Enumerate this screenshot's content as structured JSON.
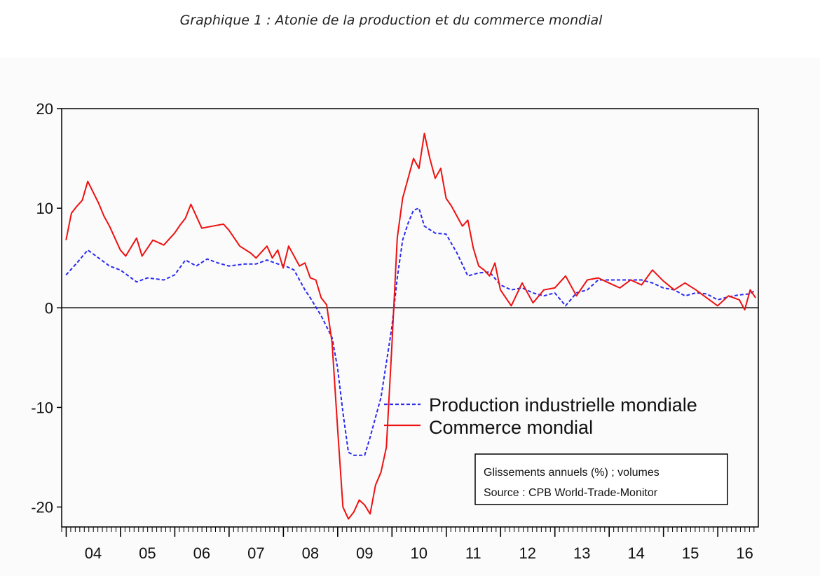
{
  "figure": {
    "caption": "Graphique 1 : Atonie de la production et du commerce mondial",
    "note_lines": [
      "Glissements annuels (%) ; volumes",
      "Source : CPB World-Trade-Monitor"
    ]
  },
  "colors": {
    "production": "#2a2af0",
    "commerce": "#ee1111",
    "axis": "#000000",
    "background": "#fbfbfb"
  },
  "chart_data": {
    "type": "line",
    "title": "",
    "xlabel": "",
    "ylabel": "",
    "ylim": [
      -22,
      20
    ],
    "xlim": [
      2003.92,
      2016.75
    ],
    "yticks": [
      20,
      10,
      0,
      -10,
      -20
    ],
    "xtick_labels": [
      "04",
      "05",
      "06",
      "07",
      "08",
      "09",
      "10",
      "11",
      "12",
      "13",
      "14",
      "15",
      "16"
    ],
    "xtick_positions": [
      2004.5,
      2005.5,
      2006.5,
      2007.5,
      2008.5,
      2009.5,
      2010.5,
      2011.5,
      2012.5,
      2013.5,
      2014.5,
      2015.5,
      2016.5
    ],
    "zero_line": true,
    "legend_position": "center-right",
    "series": [
      {
        "name": "Production industrielle mondiale",
        "style": "dashed",
        "x": [
          2004.0,
          2004.2,
          2004.4,
          2004.6,
          2004.8,
          2005.0,
          2005.3,
          2005.5,
          2005.8,
          2006.0,
          2006.2,
          2006.4,
          2006.6,
          2006.8,
          2007.0,
          2007.3,
          2007.5,
          2007.7,
          2007.9,
          2008.0,
          2008.2,
          2008.4,
          2008.5,
          2008.7,
          2008.9,
          2009.0,
          2009.1,
          2009.2,
          2009.3,
          2009.5,
          2009.6,
          2009.7,
          2009.8,
          2009.9,
          2010.0,
          2010.1,
          2010.2,
          2010.3,
          2010.4,
          2010.5,
          2010.6,
          2010.8,
          2011.0,
          2011.2,
          2011.4,
          2011.6,
          2011.8,
          2012.0,
          2012.2,
          2012.4,
          2012.6,
          2012.8,
          2013.0,
          2013.2,
          2013.4,
          2013.6,
          2013.8,
          2014.0,
          2014.2,
          2014.4,
          2014.6,
          2014.8,
          2015.0,
          2015.2,
          2015.4,
          2015.6,
          2015.8,
          2016.0,
          2016.2,
          2016.4,
          2016.6,
          2016.7
        ],
        "values": [
          3.3,
          4.5,
          5.8,
          5.0,
          4.2,
          3.8,
          2.6,
          3.0,
          2.8,
          3.3,
          4.8,
          4.2,
          4.9,
          4.5,
          4.2,
          4.4,
          4.4,
          4.8,
          4.4,
          4.3,
          3.8,
          1.8,
          1.0,
          -0.8,
          -3.0,
          -6.0,
          -10.5,
          -14.5,
          -14.8,
          -14.8,
          -13.0,
          -11.0,
          -9.0,
          -5.5,
          -2.0,
          3.0,
          6.8,
          8.5,
          9.8,
          10.0,
          8.2,
          7.5,
          7.4,
          5.5,
          3.2,
          3.5,
          3.6,
          2.3,
          1.8,
          2.0,
          1.5,
          1.2,
          1.5,
          0.2,
          1.5,
          1.8,
          2.8,
          2.8,
          2.8,
          2.8,
          2.8,
          2.5,
          2.0,
          1.8,
          1.2,
          1.5,
          1.4,
          0.8,
          1.1,
          1.3,
          1.4,
          1.8
        ]
      },
      {
        "name": "Commerce mondial",
        "style": "solid",
        "x": [
          2004.0,
          2004.1,
          2004.2,
          2004.3,
          2004.4,
          2004.6,
          2004.7,
          2004.8,
          2005.0,
          2005.1,
          2005.3,
          2005.4,
          2005.6,
          2005.8,
          2006.0,
          2006.1,
          2006.2,
          2006.3,
          2006.5,
          2006.7,
          2006.9,
          2007.0,
          2007.2,
          2007.4,
          2007.5,
          2007.7,
          2007.8,
          2007.9,
          2008.0,
          2008.1,
          2008.3,
          2008.4,
          2008.5,
          2008.6,
          2008.7,
          2008.8,
          2008.9,
          2009.0,
          2009.1,
          2009.2,
          2009.3,
          2009.4,
          2009.5,
          2009.6,
          2009.7,
          2009.8,
          2009.9,
          2010.0,
          2010.1,
          2010.2,
          2010.3,
          2010.4,
          2010.5,
          2010.6,
          2010.7,
          2010.8,
          2010.9,
          2011.0,
          2011.1,
          2011.2,
          2011.3,
          2011.4,
          2011.5,
          2011.6,
          2011.7,
          2011.8,
          2011.9,
          2012.0,
          2012.2,
          2012.4,
          2012.6,
          2012.8,
          2013.0,
          2013.2,
          2013.4,
          2013.6,
          2013.8,
          2014.0,
          2014.2,
          2014.4,
          2014.6,
          2014.8,
          2015.0,
          2015.2,
          2015.4,
          2015.6,
          2015.8,
          2016.0,
          2016.2,
          2016.4,
          2016.5,
          2016.6,
          2016.7
        ],
        "values": [
          6.8,
          9.5,
          10.2,
          10.8,
          12.7,
          10.5,
          9.2,
          8.2,
          5.8,
          5.2,
          7.0,
          5.2,
          6.8,
          6.3,
          7.5,
          8.3,
          9.0,
          10.4,
          8.0,
          8.2,
          8.4,
          7.8,
          6.2,
          5.5,
          5.0,
          6.2,
          5.0,
          5.8,
          4.0,
          6.2,
          4.2,
          4.5,
          3.0,
          2.8,
          1.0,
          0.3,
          -3.5,
          -12.0,
          -20.0,
          -21.2,
          -20.5,
          -19.3,
          -19.8,
          -20.7,
          -17.8,
          -16.5,
          -14.0,
          -4.0,
          7.0,
          11.0,
          13.0,
          15.0,
          14.0,
          17.5,
          15.0,
          13.0,
          14.0,
          11.0,
          10.2,
          9.2,
          8.2,
          8.8,
          6.0,
          4.2,
          3.8,
          3.2,
          4.5,
          1.8,
          0.2,
          2.5,
          0.5,
          1.8,
          2.0,
          3.2,
          1.2,
          2.8,
          3.0,
          2.5,
          2.0,
          2.8,
          2.3,
          3.8,
          2.7,
          1.8,
          2.5,
          1.8,
          1.0,
          0.2,
          1.2,
          0.8,
          -0.2,
          1.8,
          1.0
        ]
      }
    ]
  }
}
